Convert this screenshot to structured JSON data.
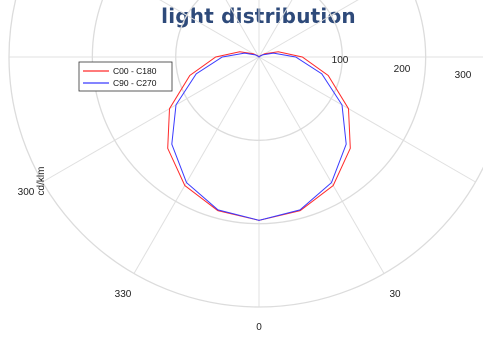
{
  "page": {
    "title": "light distribution"
  },
  "chart_data": {
    "type": "polar",
    "ylabel": "cd/klm",
    "angle_labels": [
      "0",
      "30",
      "330",
      "300"
    ],
    "radial_ticks": [
      100,
      200,
      300
    ],
    "radial_tick_labels": [
      "100",
      "200",
      "300"
    ],
    "r_max": 300,
    "grid": true,
    "legend_position": "top-left",
    "series": [
      {
        "name": "C00 - C180",
        "color": "#ff2a2a",
        "angles": [
          0,
          15,
          30,
          45,
          60,
          75,
          90,
          105,
          120,
          135,
          150,
          165,
          180
        ],
        "values": [
          196,
          191,
          178,
          155,
          124,
          86,
          52,
          24,
          8,
          2,
          0,
          0,
          0
        ]
      },
      {
        "name": "C90 - C270",
        "color": "#3a3aff",
        "angles": [
          0,
          15,
          30,
          45,
          60,
          75,
          90,
          105,
          120,
          135,
          150,
          165,
          180
        ],
        "values": [
          196,
          190,
          174,
          148,
          115,
          78,
          44,
          18,
          5,
          1,
          0,
          0,
          0
        ]
      }
    ]
  }
}
